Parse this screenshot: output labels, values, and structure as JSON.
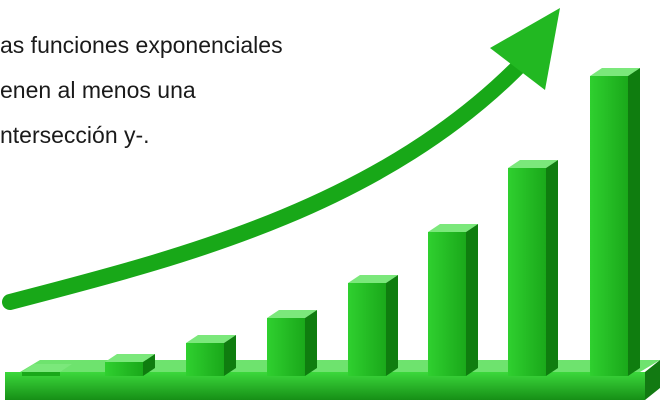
{
  "text": {
    "lines": [
      "as funciones exponenciales",
      "enen al menos una",
      "ntersección y-."
    ]
  }
}
